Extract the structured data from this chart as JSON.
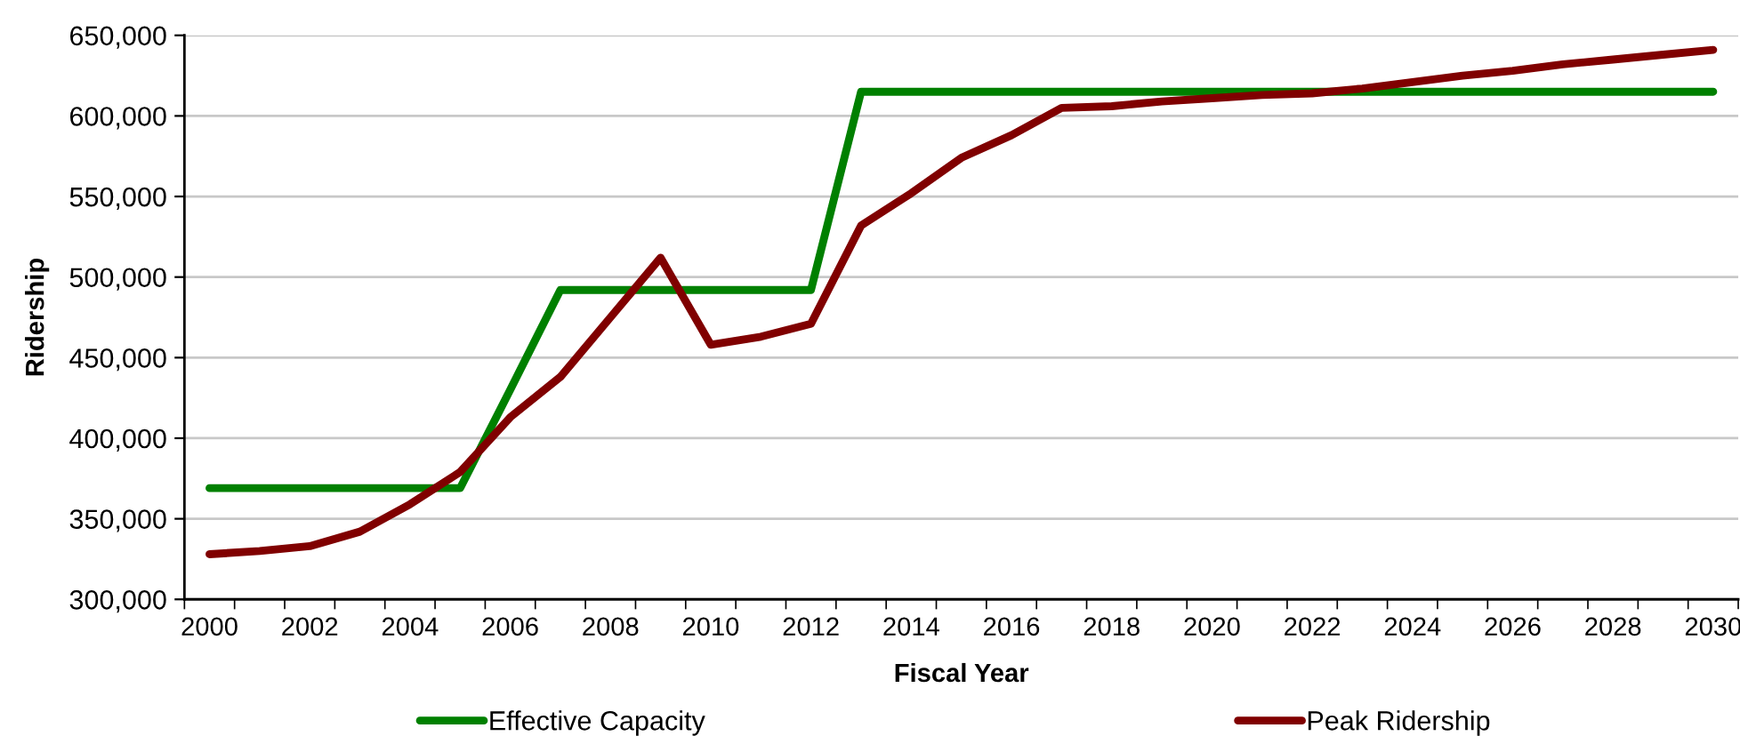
{
  "chart_data": {
    "type": "line",
    "xlabel": "Fiscal Year",
    "ylabel": "Ridership",
    "categories": [
      "2000",
      null,
      "2002",
      null,
      "2004",
      null,
      "2006",
      null,
      "2008",
      null,
      "2010",
      null,
      "2012",
      null,
      "2014",
      null,
      "2016",
      null,
      "2018",
      null,
      "2020",
      null,
      "2022",
      null,
      "2024",
      null,
      "2026",
      null,
      "2028",
      null,
      "2030"
    ],
    "series": [
      {
        "name": "Effective Capacity",
        "color": "#008000",
        "values": [
          369000,
          369000,
          369000,
          369000,
          369000,
          369000,
          430000,
          492000,
          492000,
          492000,
          492000,
          492000,
          492000,
          615000,
          615000,
          615000,
          615000,
          615000,
          615000,
          615000,
          615000,
          615000,
          615000,
          615000,
          615000,
          615000,
          615000,
          615000,
          615000,
          615000,
          615000
        ]
      },
      {
        "name": "Peak Ridership",
        "color": "#800000",
        "values": [
          328000,
          330000,
          333000,
          342000,
          359000,
          379000,
          413000,
          438000,
          475000,
          512000,
          458000,
          463000,
          471000,
          532000,
          552000,
          574000,
          588000,
          605000,
          606000,
          609000,
          611000,
          613000,
          614000,
          617000,
          621000,
          625000,
          628000,
          632000,
          635000,
          638000,
          641000
        ]
      }
    ],
    "ylim": [
      300000,
      650000
    ],
    "yticks": [
      {
        "value": 300000,
        "label": "300,000"
      },
      {
        "value": 350000,
        "label": "350,000"
      },
      {
        "value": 400000,
        "label": "400,000"
      },
      {
        "value": 450000,
        "label": "450,000"
      },
      {
        "value": 500000,
        "label": "500,000"
      },
      {
        "value": 550000,
        "label": "550,000"
      },
      {
        "value": 600000,
        "label": "600,000"
      },
      {
        "value": 650000,
        "label": "650,000"
      }
    ],
    "grid": "y",
    "legend": "bottom"
  }
}
